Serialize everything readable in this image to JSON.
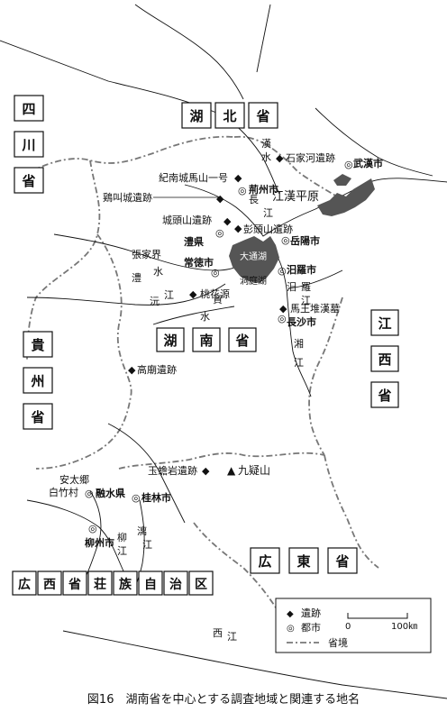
{
  "provinces": {
    "hubei": [
      "湖",
      "北",
      "省"
    ],
    "sichuan": [
      "四",
      "川",
      "省"
    ],
    "guizhou": [
      "貴",
      "州",
      "省"
    ],
    "hunan": [
      "湖",
      "南",
      "省"
    ],
    "jiangxi": [
      "江",
      "西",
      "省"
    ],
    "guangdong": [
      "広",
      "東",
      "省"
    ],
    "guangxi": [
      "広",
      "西",
      "省",
      "荘",
      "族",
      "自",
      "治",
      "区"
    ]
  },
  "sites": {
    "shijiahe": "石家河遺跡",
    "jinancheng": "紀南城馬山一号",
    "jijiaocheng": "鶏叫城遺跡",
    "chengtoushan": "城頭山遺跡",
    "pengtoushan": "彭頭山遺跡",
    "taohuayuan": "桃花源",
    "mawangdui": "馬王堆漢墓",
    "gaomiao": "高廟遺跡",
    "yuchanyan": "玉蟾岩遺跡"
  },
  "cities": {
    "wuhan": "武漢市",
    "jingzhou": "荊州市",
    "yueyang": "岳陽市",
    "lixian": "澧県",
    "changde": "常徳市",
    "miluo": "汨羅市",
    "changsha": "長沙市",
    "guilin": "桂林市",
    "rongshui": "融水県",
    "liuzhou": "柳州市",
    "antai": "安太郷",
    "baizhu": "白竹村"
  },
  "places": {
    "jianghan": "江漢平原",
    "zhangjiajie": "張家界",
    "dongting": "洞庭湖",
    "jiuyi": "九疑山",
    "jiuyi_marker": "▲"
  },
  "rivers": {
    "han": [
      "漢",
      "水"
    ],
    "chang": [
      "長",
      "江"
    ],
    "li": [
      "澧",
      "水"
    ],
    "yuan": [
      "沅",
      "江"
    ],
    "zi": [
      "資",
      "水"
    ],
    "miluo": [
      "汨",
      "羅",
      "江"
    ],
    "xiang": [
      "湘",
      "江"
    ],
    "li2": [
      "漓",
      "江"
    ],
    "liu": [
      "柳",
      "江"
    ],
    "xi": [
      "西",
      "江"
    ],
    "lake_label": "大通湖"
  },
  "legend": {
    "site_marker": "◆",
    "site_label": "遺跡",
    "city_marker": "◎",
    "city_label": "都市",
    "scale_start": "0",
    "scale_end": "100㎞",
    "border_label": "省境"
  },
  "caption": "図16　湖南省を中心とする調査地域と関連する地名"
}
